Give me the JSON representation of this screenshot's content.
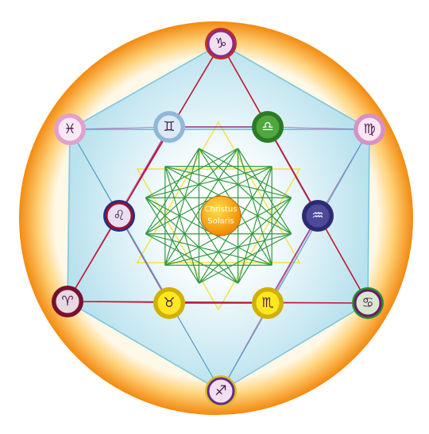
{
  "nodes": [
    {
      "label": "♑"
    },
    {
      "label": "♓"
    },
    {
      "label": "♊"
    },
    {
      "label": "♎"
    },
    {
      "label": "♍"
    },
    {
      "label": "♌"
    },
    {
      "label": "♒"
    },
    {
      "label": "♈"
    },
    {
      "label": "♉"
    },
    {
      "label": "♏"
    },
    {
      "label": "♋"
    },
    {
      "label": "♐"
    }
  ],
  "center": {
    "label_lines": [
      "Christus",
      "Solaris"
    ]
  }
}
